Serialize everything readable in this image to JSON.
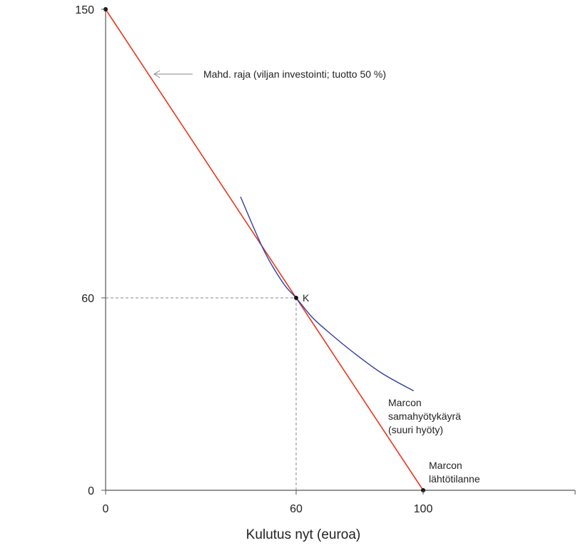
{
  "chart_data": {
    "type": "line",
    "title": "",
    "xlabel": "Kulutus nyt (euroa)",
    "ylabel": "",
    "xlim": [
      0,
      148
    ],
    "ylim": [
      0,
      150
    ],
    "x_ticks": [
      {
        "value": 0,
        "label": "0"
      },
      {
        "value": 60,
        "label": "60"
      },
      {
        "value": 100,
        "label": "100"
      }
    ],
    "y_ticks": [
      {
        "value": 0,
        "label": "0"
      },
      {
        "value": 60,
        "label": "60"
      },
      {
        "value": 150,
        "label": "150"
      }
    ],
    "grid": false,
    "series": [
      {
        "kind": "line",
        "color": "#e8371c",
        "points": [
          [
            0,
            150
          ],
          [
            100,
            0
          ]
        ]
      },
      {
        "kind": "curve",
        "color": "#2b3fa3",
        "points": [
          [
            42.5,
            91.5
          ],
          [
            50,
            74.5
          ],
          [
            56,
            64.5
          ],
          [
            60,
            60
          ],
          [
            65,
            54
          ],
          [
            70,
            49.5
          ],
          [
            78,
            43
          ],
          [
            87,
            36.5
          ],
          [
            97,
            31
          ]
        ]
      }
    ],
    "points": [
      {
        "name": "point-150",
        "x": 0,
        "y": 150,
        "label": ""
      },
      {
        "name": "point-k",
        "x": 60,
        "y": 60,
        "label": "K"
      },
      {
        "name": "point-100",
        "x": 100,
        "y": 0,
        "label": ""
      }
    ],
    "annotations": {
      "frontier": "Mahd. raja  (viljan investointi; tuotto 50  %)",
      "indifference": [
        "Marcon",
        "samahyötykäyrä",
        "(suuri hyöty)"
      ],
      "start": [
        "Marcon",
        "lähtötilanne"
      ]
    },
    "colors": {
      "frontier": "#e8371c",
      "indifference": "#2b3fa3",
      "axis": "#555555",
      "dashed": "#888888",
      "arrow": "#888888"
    }
  }
}
